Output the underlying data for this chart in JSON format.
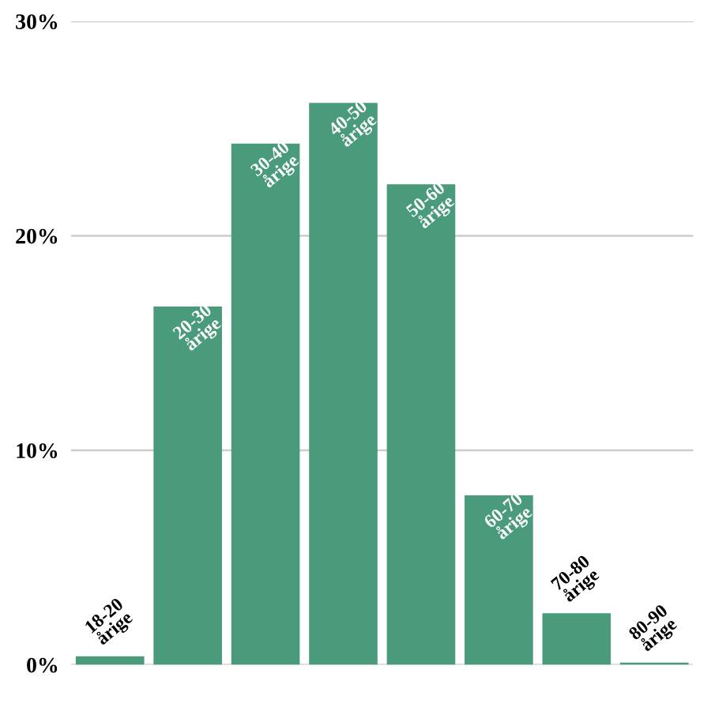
{
  "chart_data": {
    "type": "bar",
    "categories": [
      "18-20 årige",
      "20-30 årige",
      "30-40 årige",
      "40-50 årige",
      "50-60 årige",
      "60-70 årige",
      "70-80 årige",
      "80-90 årige"
    ],
    "values": [
      0.4,
      16.7,
      24.3,
      26.2,
      22.4,
      7.9,
      2.4,
      0.1
    ],
    "color": "#4a9a7c",
    "ylim": [
      0,
      30
    ],
    "yticks": [
      {
        "value": 0,
        "label": "0%"
      },
      {
        "value": 10,
        "label": "10%"
      },
      {
        "value": 20,
        "label": "20%"
      },
      {
        "value": 30,
        "label": "30%"
      }
    ],
    "grid": "y",
    "tick_labels": "y"
  }
}
